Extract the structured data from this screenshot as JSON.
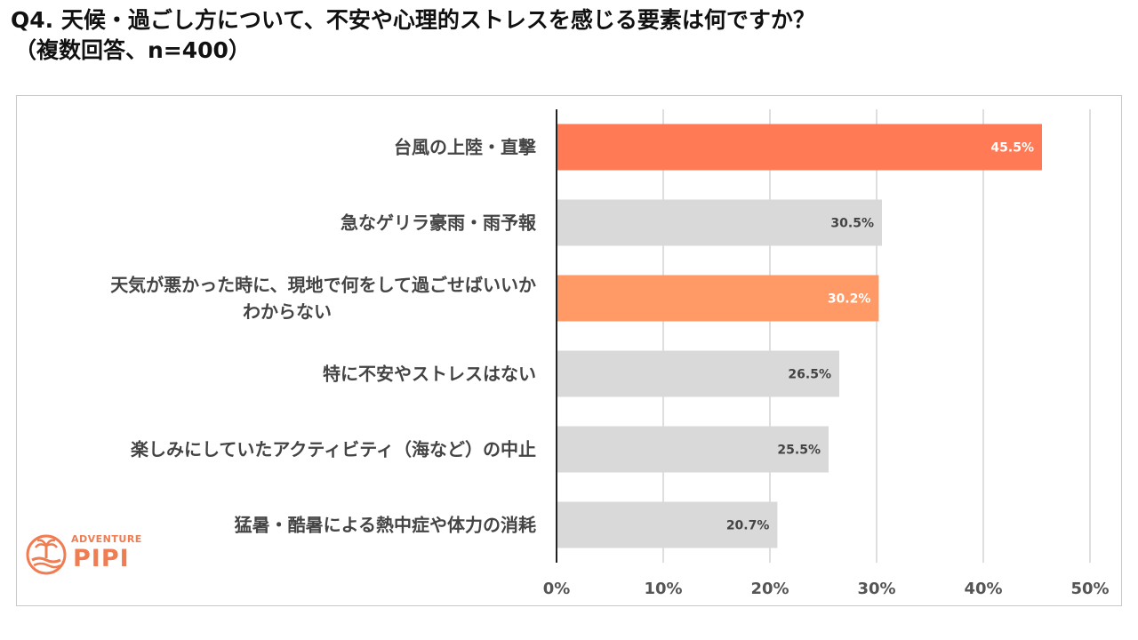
{
  "header": {
    "title_line1": "Q4. 天候・過ごし方について、不安や心理的ストレスを感じる要素は何ですか？",
    "title_line2": "（複数回答、n=400）"
  },
  "logo": {
    "top_text": "ADVENTURE",
    "brand": "PIPI"
  },
  "colors": {
    "highlight_primary": "#ff7a55",
    "highlight_secondary": "#ff9a66",
    "neutral_bar": "#d9d9d9",
    "axis": "#222222",
    "grid": "#bdbdbd",
    "brand": "#f07c52"
  },
  "chart_data": {
    "type": "bar",
    "orientation": "horizontal",
    "categories": [
      [
        "台風の上陸・直撃"
      ],
      [
        "急なゲリラ豪雨・雨予報"
      ],
      [
        "天気が悪かった時に、現地で何をして過ごせばいいか",
        "わからない"
      ],
      [
        "特に不安やストレスはない"
      ],
      [
        "楽しみにしていたアクティビティ（海など）の中止"
      ],
      [
        "猛暑・酷暑による熱中症や体力の消耗"
      ]
    ],
    "values": [
      45.5,
      30.5,
      30.2,
      26.5,
      25.5,
      20.7
    ],
    "value_labels": [
      "45.5%",
      "30.5%",
      "30.2%",
      "26.5%",
      "25.5%",
      "20.7%"
    ],
    "bar_colors": [
      "#ff7a55",
      "#d9d9d9",
      "#ff9a66",
      "#d9d9d9",
      "#d9d9d9",
      "#d9d9d9"
    ],
    "value_label_colors": [
      "#ffffff",
      "#444444",
      "#ffffff",
      "#444444",
      "#444444",
      "#444444"
    ],
    "xlim": [
      0,
      50
    ],
    "xticks": [
      0,
      10,
      20,
      30,
      40,
      50
    ],
    "xtick_labels": [
      "0%",
      "10%",
      "20%",
      "30%",
      "40%",
      "50%"
    ],
    "grid": true,
    "legend": "none"
  }
}
